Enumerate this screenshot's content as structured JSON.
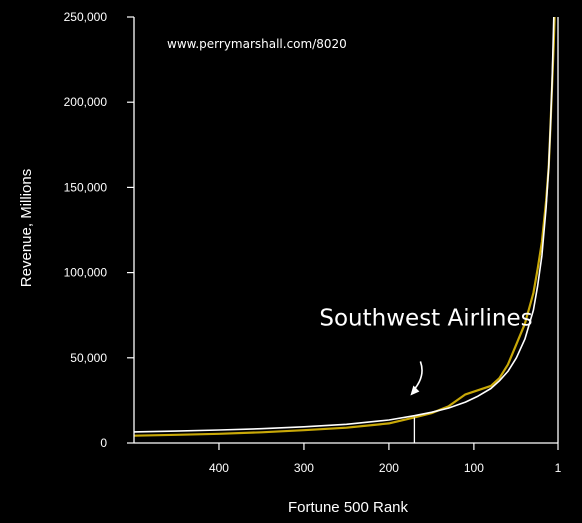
{
  "chart_data": {
    "type": "line",
    "title": "",
    "watermark": "www.perrymarshall.com/8020",
    "xlabel": "Fortune 500 Rank",
    "ylabel": "Revenue, Millions",
    "xlim": [
      500,
      1
    ],
    "ylim": [
      0,
      250000
    ],
    "x_ticks": [
      400,
      300,
      200,
      100,
      1
    ],
    "x_tick_labels": [
      "400",
      "300",
      "200",
      "100",
      "1"
    ],
    "y_ticks": [
      0,
      50000,
      100000,
      150000,
      200000,
      250000
    ],
    "y_tick_labels": [
      "0",
      "50,000",
      "100,000",
      "150,000",
      "200,000",
      "250,000"
    ],
    "grid": false,
    "colors": {
      "background": "#000000",
      "actual_series": "#c8a808",
      "fitted_curve": "#ffffff",
      "axes": "#ffffff"
    },
    "series": [
      {
        "values_kind": "actual",
        "points": [
          [
            500,
            4300
          ],
          [
            450,
            4800
          ],
          [
            400,
            5400
          ],
          [
            350,
            6300
          ],
          [
            300,
            7500
          ],
          [
            250,
            9000
          ],
          [
            200,
            11500
          ],
          [
            170,
            15000
          ],
          [
            150,
            17500
          ],
          [
            130,
            21500
          ],
          [
            110,
            28500
          ],
          [
            95,
            31000
          ],
          [
            80,
            33500
          ],
          [
            70,
            38000
          ],
          [
            60,
            46000
          ],
          [
            50,
            58000
          ],
          [
            40,
            70000
          ],
          [
            30,
            88000
          ],
          [
            25,
            102000
          ],
          [
            20,
            118000
          ],
          [
            15,
            142000
          ],
          [
            12,
            162000
          ],
          [
            10,
            185000
          ],
          [
            8,
            210000
          ],
          [
            6,
            235000
          ],
          [
            5,
            250000
          ]
        ]
      },
      {
        "values_kind": "fit",
        "points": [
          [
            500,
            6500
          ],
          [
            450,
            7000
          ],
          [
            400,
            7600
          ],
          [
            350,
            8400
          ],
          [
            300,
            9500
          ],
          [
            250,
            11000
          ],
          [
            200,
            13500
          ],
          [
            170,
            16000
          ],
          [
            150,
            18000
          ],
          [
            130,
            20500
          ],
          [
            110,
            24000
          ],
          [
            95,
            27500
          ],
          [
            80,
            32000
          ],
          [
            70,
            36500
          ],
          [
            60,
            42000
          ],
          [
            50,
            50000
          ],
          [
            40,
            61000
          ],
          [
            30,
            78000
          ],
          [
            25,
            92000
          ],
          [
            20,
            110000
          ],
          [
            15,
            138000
          ],
          [
            12,
            162000
          ],
          [
            10,
            185000
          ],
          [
            8,
            212000
          ],
          [
            7,
            230000
          ],
          [
            6,
            250000
          ]
        ]
      }
    ],
    "annotations": [
      {
        "text": "Southwest Airlines",
        "x": 170,
        "y": 15000
      }
    ]
  }
}
